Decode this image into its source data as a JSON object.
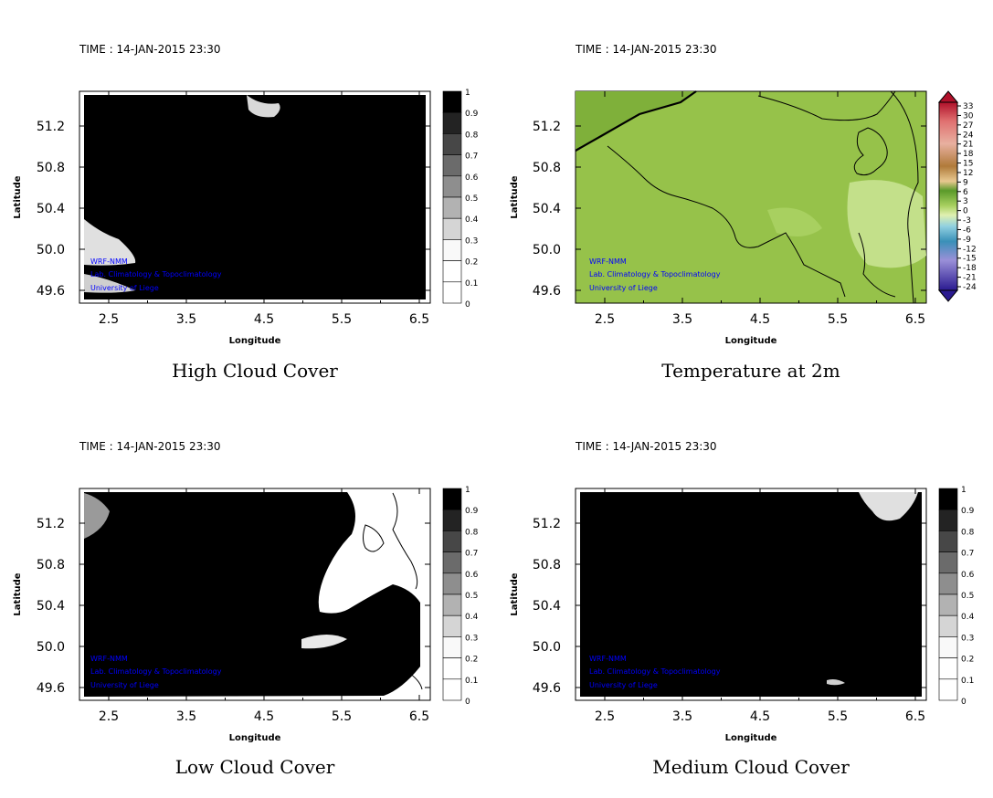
{
  "panels": [
    {
      "id": "high",
      "time_label": "TIME : 14-JAN-2015 23:30",
      "title": "High Cloud Cover",
      "xlabel": "Longitude",
      "ylabel": "Latitude",
      "xticks": [
        "2.5",
        "3.5",
        "4.5",
        "5.5",
        "6.5"
      ],
      "yticks": [
        "51.2",
        "50.8",
        "50.4",
        "50.0",
        "49.6"
      ],
      "colorbar_labels": [
        "1",
        "0.9",
        "0.8",
        "0.7",
        "0.6",
        "0.5",
        "0.4",
        "0.3",
        "0.2",
        "0.1",
        "0"
      ],
      "credits": [
        "WRF-NMM",
        "Lab. Climatology & Topoclimatology",
        "University of Liege"
      ]
    },
    {
      "id": "temp",
      "time_label": "TIME : 14-JAN-2015 23:30",
      "title": "Temperature at 2m",
      "xlabel": "Longitude",
      "ylabel": "Latitude",
      "xticks": [
        "2.5",
        "3.5",
        "4.5",
        "5.5",
        "6.5"
      ],
      "yticks": [
        "51.2",
        "50.8",
        "50.4",
        "50.0",
        "49.6"
      ],
      "colorbar_labels": [
        "33",
        "30",
        "27",
        "24",
        "21",
        "18",
        "15",
        "12",
        "9",
        "6",
        "3",
        "0",
        "-3",
        "-6",
        "-9",
        "-12",
        "-15",
        "-18",
        "-21",
        "-24"
      ],
      "credits": [
        "WRF-NMM",
        "Lab. Climatology & Topoclimatology",
        "University of Liege"
      ]
    },
    {
      "id": "low",
      "time_label": "TIME : 14-JAN-2015 23:30",
      "title": "Low Cloud Cover",
      "xlabel": "Longitude",
      "ylabel": "Latitude",
      "xticks": [
        "2.5",
        "3.5",
        "4.5",
        "5.5",
        "6.5"
      ],
      "yticks": [
        "51.2",
        "50.8",
        "50.4",
        "50.0",
        "49.6"
      ],
      "colorbar_labels": [
        "1",
        "0.9",
        "0.8",
        "0.7",
        "0.6",
        "0.5",
        "0.4",
        "0.3",
        "0.2",
        "0.1",
        "0"
      ],
      "credits": [
        "WRF-NMM",
        "Lab. Climatology & Topoclimatology",
        "University of Liege"
      ]
    },
    {
      "id": "medium",
      "time_label": "TIME : 14-JAN-2015 23:30",
      "title": "Medium Cloud Cover",
      "xlabel": "Longitude",
      "ylabel": "Latitude",
      "xticks": [
        "2.5",
        "3.5",
        "4.5",
        "5.5",
        "6.5"
      ],
      "yticks": [
        "51.2",
        "50.8",
        "50.4",
        "50.0",
        "49.6"
      ],
      "colorbar_labels": [
        "1",
        "0.9",
        "0.8",
        "0.7",
        "0.6",
        "0.5",
        "0.4",
        "0.3",
        "0.2",
        "0.1",
        "0"
      ],
      "credits": [
        "WRF-NMM",
        "Lab. Climatology & Topoclimatology",
        "University of Liege"
      ]
    }
  ],
  "colors": {
    "cloud_full": "#000000",
    "credit_text": "#0000ff",
    "temp_field": "#96c24a",
    "temp_field_light": "#c3e08a",
    "temp_field_dark": "#7fb03a"
  }
}
